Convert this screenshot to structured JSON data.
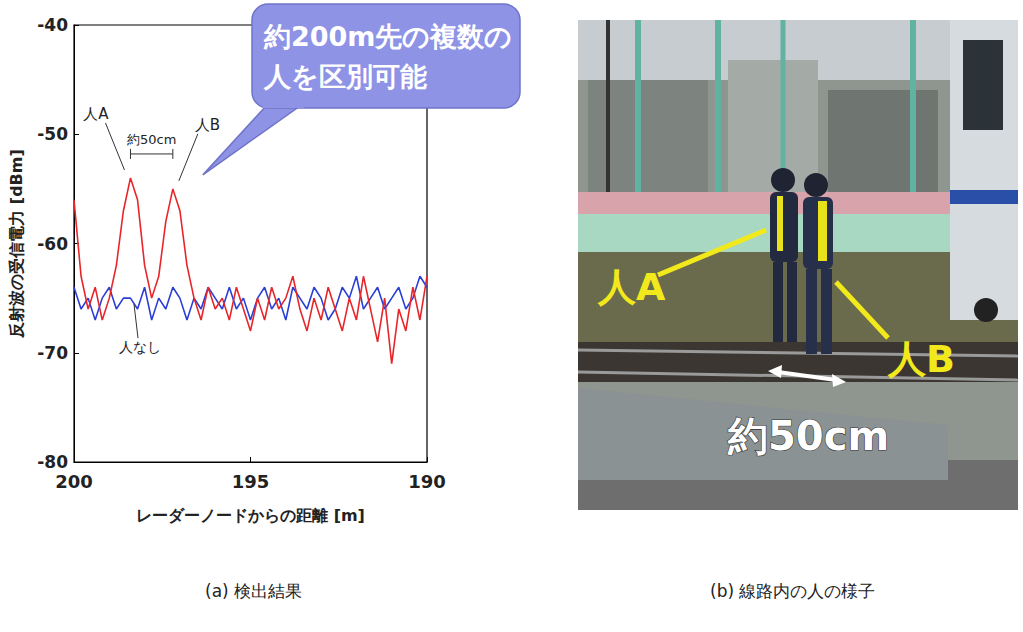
{
  "chart_data": {
    "type": "line",
    "x_label": "レーダーノードからの距離 [m]",
    "y_label": "反射波の受信電力 [dBm]",
    "x": [
      200,
      199.8,
      199.6,
      199.4,
      199.2,
      199,
      198.8,
      198.6,
      198.4,
      198.2,
      198,
      197.8,
      197.6,
      197.4,
      197.2,
      197,
      196.8,
      196.6,
      196.4,
      196.2,
      196,
      195.8,
      195.6,
      195.4,
      195.2,
      195,
      194.8,
      194.6,
      194.4,
      194.2,
      194,
      193.8,
      193.6,
      193.4,
      193.2,
      193,
      192.8,
      192.6,
      192.4,
      192.2,
      192,
      191.8,
      191.6,
      191.4,
      191.2,
      191,
      190.8,
      190.6,
      190.4,
      190.2,
      190
    ],
    "series": [
      {
        "color": "#2a3fd6",
        "values": [
          -64,
          -66,
          -65,
          -67,
          -65,
          -64,
          -66,
          -65,
          -65,
          -66,
          -64,
          -67,
          -65,
          -66,
          -64,
          -65,
          -67,
          -65,
          -66,
          -64,
          -65,
          -66,
          -64,
          -66,
          -65,
          -67,
          -65,
          -64,
          -66,
          -65,
          -67,
          -64,
          -65,
          -66,
          -64,
          -65,
          -67,
          -66,
          -64,
          -65,
          -63,
          -66,
          -65,
          -64,
          -66,
          -65,
          -64,
          -66,
          -65,
          -63,
          -64
        ]
      },
      {
        "color": "#e8262a",
        "values": [
          -56,
          -63,
          -66,
          -64,
          -67,
          -65,
          -62,
          -57,
          -54,
          -56,
          -62,
          -65,
          -63,
          -58,
          -55,
          -57,
          -62,
          -65,
          -67,
          -64,
          -66,
          -65,
          -67,
          -64,
          -66,
          -68,
          -65,
          -67,
          -64,
          -66,
          -65,
          -63,
          -66,
          -68,
          -65,
          -67,
          -64,
          -66,
          -68,
          -65,
          -67,
          -63,
          -66,
          -69,
          -65,
          -71,
          -66,
          -68,
          -64,
          -67,
          -63
        ]
      }
    ],
    "xlim": [
      200,
      190
    ],
    "xticks": [
      200,
      195,
      190
    ],
    "ylim": [
      -80,
      -40
    ],
    "yticks": [
      -80,
      -70,
      -60,
      -50,
      -40
    ],
    "grid": false,
    "annotations": [
      {
        "text": "人A",
        "x": 198.4,
        "y": -54
      },
      {
        "text": "人B",
        "x": 197.2,
        "y": -55
      },
      {
        "text": "約50cm",
        "x": [
          198.4,
          197.2
        ],
        "y": -54
      },
      {
        "text": "人なし",
        "x": 198.3,
        "y": -65
      }
    ],
    "callout": [
      "約200m先の複数の",
      "人を区別可能"
    ]
  },
  "photo": {
    "label_a": "人A",
    "label_b": "人B",
    "distance": "約50cm"
  },
  "captions": [
    "(a) 検出結果",
    "(b) 線路内の人の様子"
  ]
}
